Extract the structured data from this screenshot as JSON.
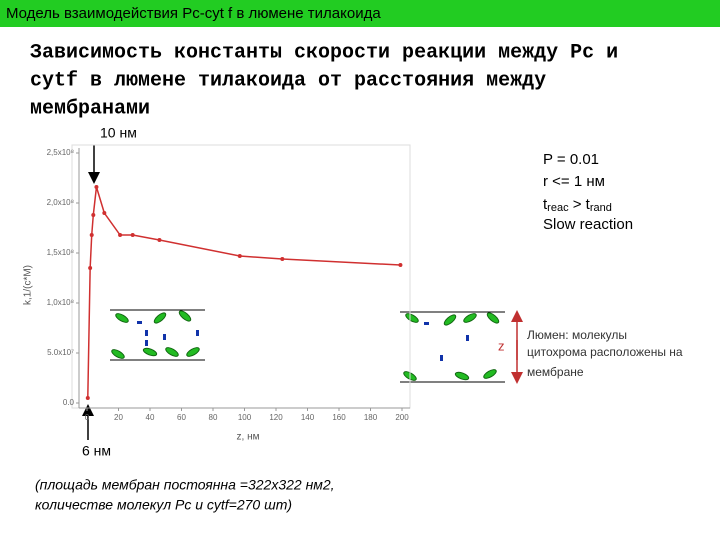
{
  "header": "Модель взаимодействия Pc-cyt f в люмене тилакоида",
  "title": [
    "Зависимость константы скорости реакции между Pc и",
    "cytf  в люмене тилакоида от расстояния между",
    "мембранами"
  ],
  "arrow_top": "10 нм",
  "arrow_bottom": "6 нм",
  "params": {
    "p": "P = 0.01",
    "r": "r <= 1 нм",
    "cond": [
      "t",
      "reac",
      " > t",
      "rand"
    ],
    "slow": "Slow reaction"
  },
  "z_label": "z",
  "side_note": [
    "Люмен: молекулы",
    "цитохрома расположены на",
    "мембране"
  ],
  "footnote": [
    "(площадь мембран постоянна =322x322 нм2,",
    "количестве молекул Pc и cytf=270 шт)"
  ],
  "chart_data": {
    "type": "line",
    "x_label": "z, нм",
    "y_label": "k,1/(c*M)",
    "color": "#d03030",
    "x": [
      0.5,
      2,
      3,
      4,
      6,
      11,
      21,
      29,
      46,
      97,
      124,
      199
    ],
    "values": [
      5000000,
      135000000,
      168000000,
      188000000,
      216000000,
      190000000,
      168000000,
      168000000,
      163000000,
      147000000,
      144000000,
      138000000
    ],
    "xlim": [
      0,
      210
    ],
    "xticks": [
      0,
      20,
      40,
      60,
      80,
      100,
      120,
      140,
      160,
      180,
      200
    ],
    "ylim": [
      0,
      250000000
    ],
    "yticks": [
      {
        "value": 0,
        "label": "0.0"
      },
      {
        "value": 50000000,
        "label": "5.0x10⁷"
      },
      {
        "value": 100000000,
        "label": "1,0x10⁸"
      },
      {
        "value": 150000000,
        "label": "1,5x10⁸"
      },
      {
        "value": 200000000,
        "label": "2,0x10⁸"
      },
      {
        "value": 250000000,
        "label": "2,5x10⁸"
      }
    ]
  }
}
